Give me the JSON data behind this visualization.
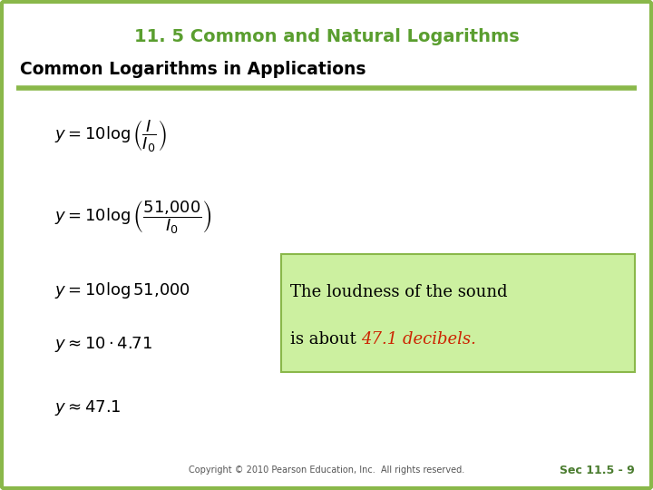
{
  "title": "11. 5 Common and Natural Logarithms",
  "subtitle": "Common Logarithms in Applications",
  "title_color": "#5a9e2f",
  "subtitle_color": "#000000",
  "background_color": "#ffffff",
  "border_color": "#8ab84a",
  "line_color": "#8ab84a",
  "eq1": "$y = 10 \\log \\left( \\dfrac{I}{I_0} \\right)$",
  "eq2": "$y = 10 \\log \\left( \\dfrac{51{,}000}{I_0} \\right)$",
  "eq3": "$y = 10 \\log 51{,}000$",
  "eq4": "$y \\approx 10 \\cdot 4.71$",
  "eq5": "$y \\approx 47.1$",
  "box_text1": "The loudness of the sound",
  "box_text2": "is about ",
  "box_highlight": "47.1 decibels.",
  "box_text_color": "#000000",
  "box_highlight_color": "#cc2200",
  "box_bg_color": "#ccf0a0",
  "box_border_color": "#8ab84a",
  "copyright": "Copyright © 2010 Pearson Education, Inc.  All rights reserved.",
  "sec_label": "Sec 11.5 - 9",
  "copyright_color": "#555555",
  "sec_color": "#4a7c2f"
}
